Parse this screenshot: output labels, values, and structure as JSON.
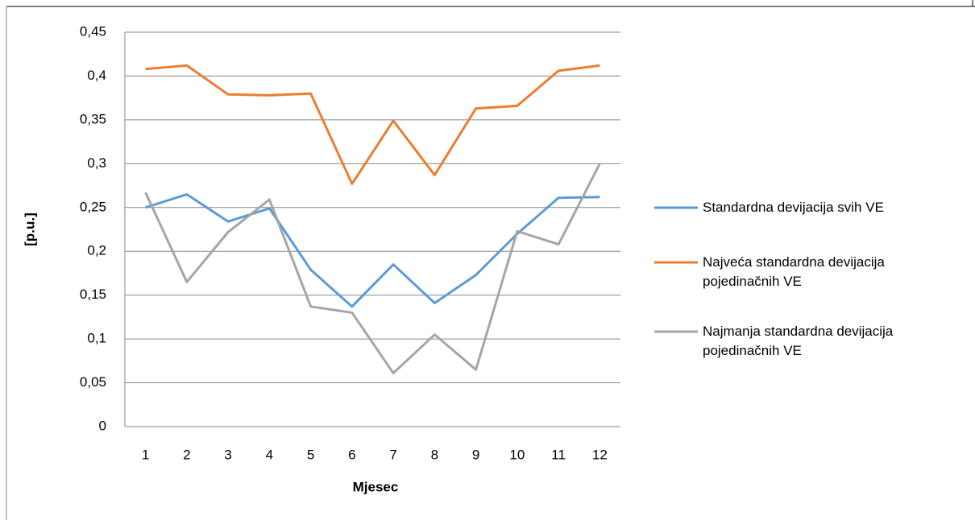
{
  "chart_data": {
    "type": "line",
    "categories": [
      "1",
      "2",
      "3",
      "4",
      "5",
      "6",
      "7",
      "8",
      "9",
      "10",
      "11",
      "12"
    ],
    "x_label": "Mjesec",
    "y_label": "[p.u.]",
    "ylim": [
      0,
      0.45
    ],
    "yticks": [
      0,
      {
        "value": 0.05,
        "label": "0,05"
      },
      {
        "value": 0.1,
        "label": "0,1"
      },
      {
        "value": 0.15,
        "label": "0,15"
      },
      {
        "value": 0.2,
        "label": "0,2"
      },
      {
        "value": 0.25,
        "label": "0,25"
      },
      {
        "value": 0.3,
        "label": "0,3"
      },
      {
        "value": 0.35,
        "label": "0,35"
      },
      {
        "value": 0.4,
        "label": "0,4"
      },
      {
        "value": 0.45,
        "label": "0,45"
      }
    ],
    "grid": true,
    "legend": "right",
    "series": [
      {
        "name": "Standardna devijacija svih VE",
        "color": "#5b9bd5",
        "values": [
          0.25,
          0.265,
          0.234,
          0.249,
          0.179,
          0.137,
          0.185,
          0.141,
          0.173,
          0.22,
          0.261,
          0.262
        ]
      },
      {
        "name": "Najveća standardna devijacija pojedinačnih VE",
        "color": "#ed7d31",
        "values": [
          0.408,
          0.412,
          0.379,
          0.378,
          0.38,
          0.277,
          0.349,
          0.287,
          0.363,
          0.366,
          0.406,
          0.412
        ]
      },
      {
        "name": "Najmanja standardna devijacija pojedinačnih VE",
        "color": "#a5a5a5",
        "values": [
          0.267,
          0.165,
          0.222,
          0.259,
          0.137,
          0.13,
          0.061,
          0.105,
          0.065,
          0.223,
          0.208,
          0.3
        ]
      }
    ]
  }
}
